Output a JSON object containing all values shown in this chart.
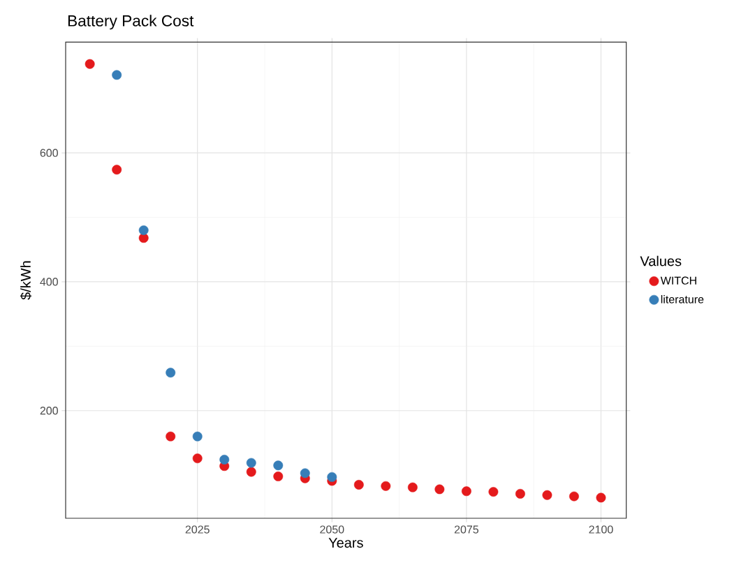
{
  "chart_data": {
    "type": "scatter",
    "title": "Battery Pack Cost",
    "xlabel": "Years",
    "ylabel": "$/kWh",
    "legend_title": "Values",
    "series": [
      {
        "name": "WITCH",
        "color": "#e41a1c",
        "x": [
          2005,
          2010,
          2015,
          2020,
          2025,
          2030,
          2035,
          2040,
          2045,
          2050,
          2055,
          2060,
          2065,
          2070,
          2075,
          2080,
          2085,
          2090,
          2095,
          2100
        ],
        "values": [
          738,
          574,
          468,
          160,
          126,
          114,
          105,
          98,
          95,
          91,
          85,
          83,
          81,
          78,
          75,
          74,
          71,
          69,
          67,
          65
        ]
      },
      {
        "name": "literature",
        "color": "#377eb8",
        "x": [
          2010,
          2015,
          2020,
          2025,
          2030,
          2035,
          2040,
          2045,
          2050
        ],
        "values": [
          721,
          480,
          259,
          160,
          124,
          119,
          115,
          103,
          97
        ]
      }
    ],
    "xlim": [
      2000.5,
      2104.7
    ],
    "ylim": [
      33,
      772
    ],
    "xticks": [
      2025,
      2050,
      2075,
      2100
    ],
    "yticks": [
      200,
      400,
      600
    ],
    "grid": true,
    "legend": "right",
    "marker": "circle"
  }
}
